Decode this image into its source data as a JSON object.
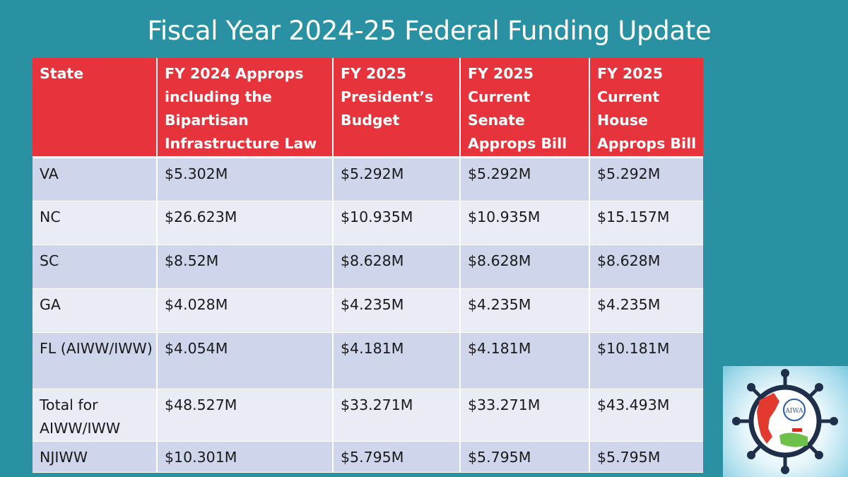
{
  "title": "Fiscal Year 2024-25 Federal Funding Update",
  "table": {
    "headers": [
      "State",
      "FY 2024 Approps including the Bipartisan Infrastructure Law",
      "FY 2025 President’s Budget",
      "FY 2025 Current Senate Approps Bill",
      "FY 2025 Current House Approps Bill"
    ],
    "rows": [
      [
        "VA",
        "$5.302M",
        "$5.292M",
        "$5.292M",
        "$5.292M"
      ],
      [
        "NC",
        "$26.623M",
        "$10.935M",
        "$10.935M",
        "$15.157M"
      ],
      [
        "SC",
        "$8.52M",
        "$8.628M",
        "$8.628M",
        "$8.628M"
      ],
      [
        "GA",
        "$4.028M",
        "$4.235M",
        "$4.235M",
        "$4.235M"
      ],
      [
        "FL (AIWW/IWW)",
        "$4.054M",
        "$4.181M",
        "$4.181M",
        "$10.181M"
      ],
      [
        "Total for AIWW/IWW",
        "$48.527M",
        "$33.271M",
        "$33.271M",
        "$43.493M"
      ],
      [
        "NJIWW",
        "$10.301M",
        "$5.795M",
        "$5.795M",
        "$5.795M"
      ]
    ]
  },
  "logo": {
    "text": "AIWA",
    "icon": "ship-wheel-map-logo-icon"
  },
  "colors": {
    "background": "#2a91a3",
    "header": "#e6333c",
    "row_dark": "#cfd5ea",
    "row_light": "#e9ebf5"
  }
}
